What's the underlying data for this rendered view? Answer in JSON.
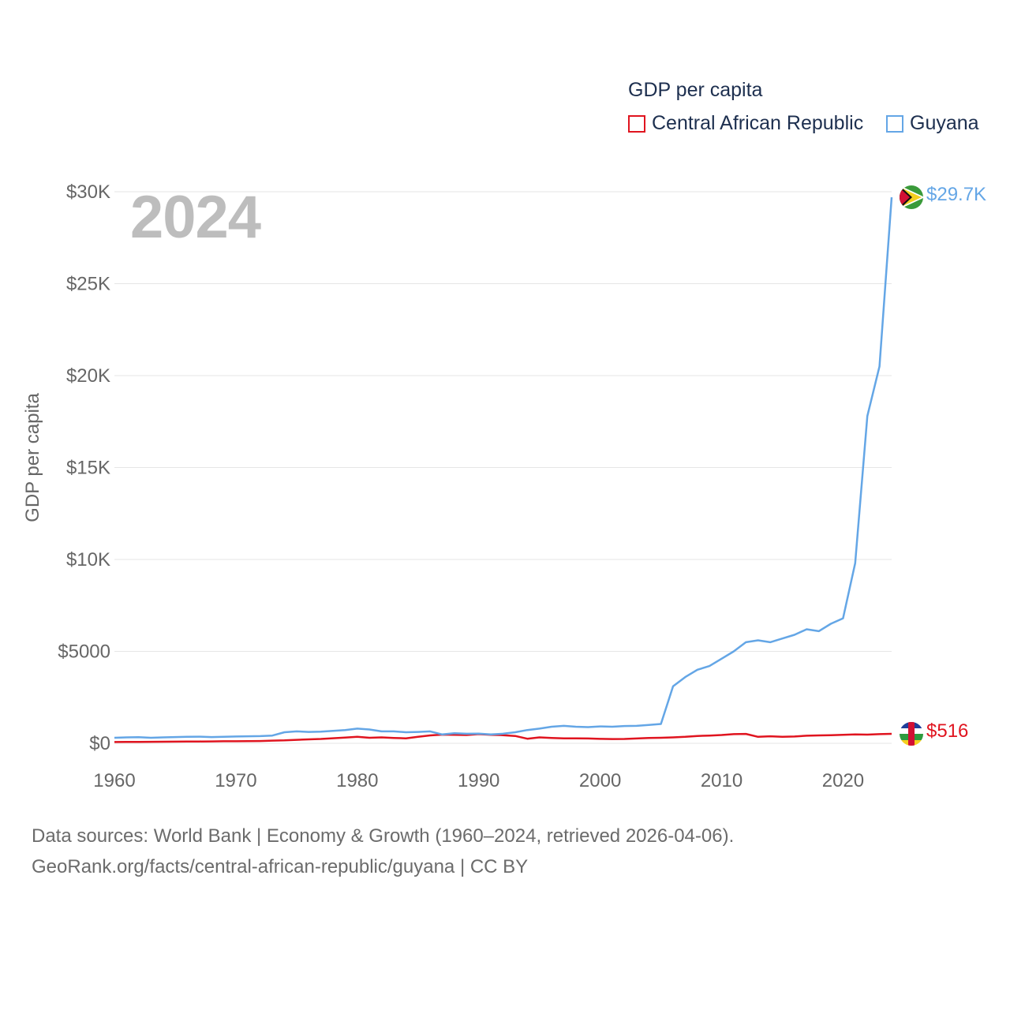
{
  "legend": {
    "title": "GDP per capita",
    "items": [
      {
        "label": "Central African Republic",
        "color": "#e0141f"
      },
      {
        "label": "Guyana",
        "color": "#64a6e6"
      }
    ]
  },
  "year_label": "2024",
  "end_labels": {
    "car": "$516",
    "guyana": "$29.7K"
  },
  "source": {
    "line1": "Data sources: World Bank | Economy & Growth (1960–2024, retrieved 2026-04-06).",
    "line2": "GeoRank.org/facts/central-african-republic/guyana | CC BY"
  },
  "chart_data": {
    "type": "line",
    "title": "GDP per capita",
    "xlabel": "",
    "ylabel": "GDP per capita",
    "xlim": [
      1960,
      2024
    ],
    "ylim": [
      0,
      30000
    ],
    "x_ticks": [
      1960,
      1970,
      1980,
      1990,
      2000,
      2010,
      2020
    ],
    "x_tick_labels": [
      "1960",
      "1970",
      "1980",
      "1990",
      "2000",
      "2010",
      "2020"
    ],
    "y_ticks": [
      0,
      5000,
      10000,
      15000,
      20000,
      25000,
      30000
    ],
    "y_tick_labels": [
      "$0",
      "$5000",
      "$10K",
      "$15K",
      "$20K",
      "$25K",
      "$30K"
    ],
    "grid": true,
    "x": [
      1960,
      1961,
      1962,
      1963,
      1964,
      1965,
      1966,
      1967,
      1968,
      1969,
      1970,
      1971,
      1972,
      1973,
      1974,
      1975,
      1976,
      1977,
      1978,
      1979,
      1980,
      1981,
      1982,
      1983,
      1984,
      1985,
      1986,
      1987,
      1988,
      1989,
      1990,
      1991,
      1992,
      1993,
      1994,
      1995,
      1996,
      1997,
      1998,
      1999,
      2000,
      2001,
      2002,
      2003,
      2004,
      2005,
      2006,
      2007,
      2008,
      2009,
      2010,
      2011,
      2012,
      2013,
      2014,
      2015,
      2016,
      2017,
      2018,
      2019,
      2020,
      2021,
      2022,
      2023,
      2024
    ],
    "series": [
      {
        "name": "Central African Republic",
        "color": "#e0141f",
        "values": [
          70,
          75,
          78,
          80,
          85,
          90,
          95,
          98,
          105,
          110,
          112,
          115,
          125,
          145,
          160,
          190,
          215,
          235,
          275,
          310,
          350,
          300,
          320,
          290,
          270,
          350,
          430,
          470,
          460,
          450,
          500,
          460,
          440,
          400,
          250,
          320,
          290,
          270,
          265,
          260,
          240,
          230,
          235,
          260,
          290,
          300,
          320,
          350,
          400,
          420,
          450,
          500,
          510,
          350,
          380,
          350,
          370,
          410,
          430,
          440,
          460,
          480,
          470,
          500,
          516
        ]
      },
      {
        "name": "Guyana",
        "color": "#64a6e6",
        "values": [
          300,
          320,
          330,
          300,
          320,
          340,
          350,
          360,
          340,
          350,
          370,
          380,
          390,
          420,
          600,
          650,
          620,
          630,
          680,
          720,
          800,
          750,
          650,
          650,
          600,
          620,
          650,
          480,
          550,
          520,
          530,
          480,
          520,
          600,
          720,
          800,
          900,
          950,
          900,
          880,
          920,
          900,
          940,
          950,
          1000,
          1050,
          3100,
          3600,
          4000,
          4200,
          4600,
          5000,
          5500,
          5600,
          5500,
          5700,
          5900,
          6200,
          6100,
          6500,
          6800,
          9800,
          17800,
          20500,
          29700
        ]
      }
    ],
    "end_labels": [
      "$516",
      "$29.7K"
    ]
  }
}
